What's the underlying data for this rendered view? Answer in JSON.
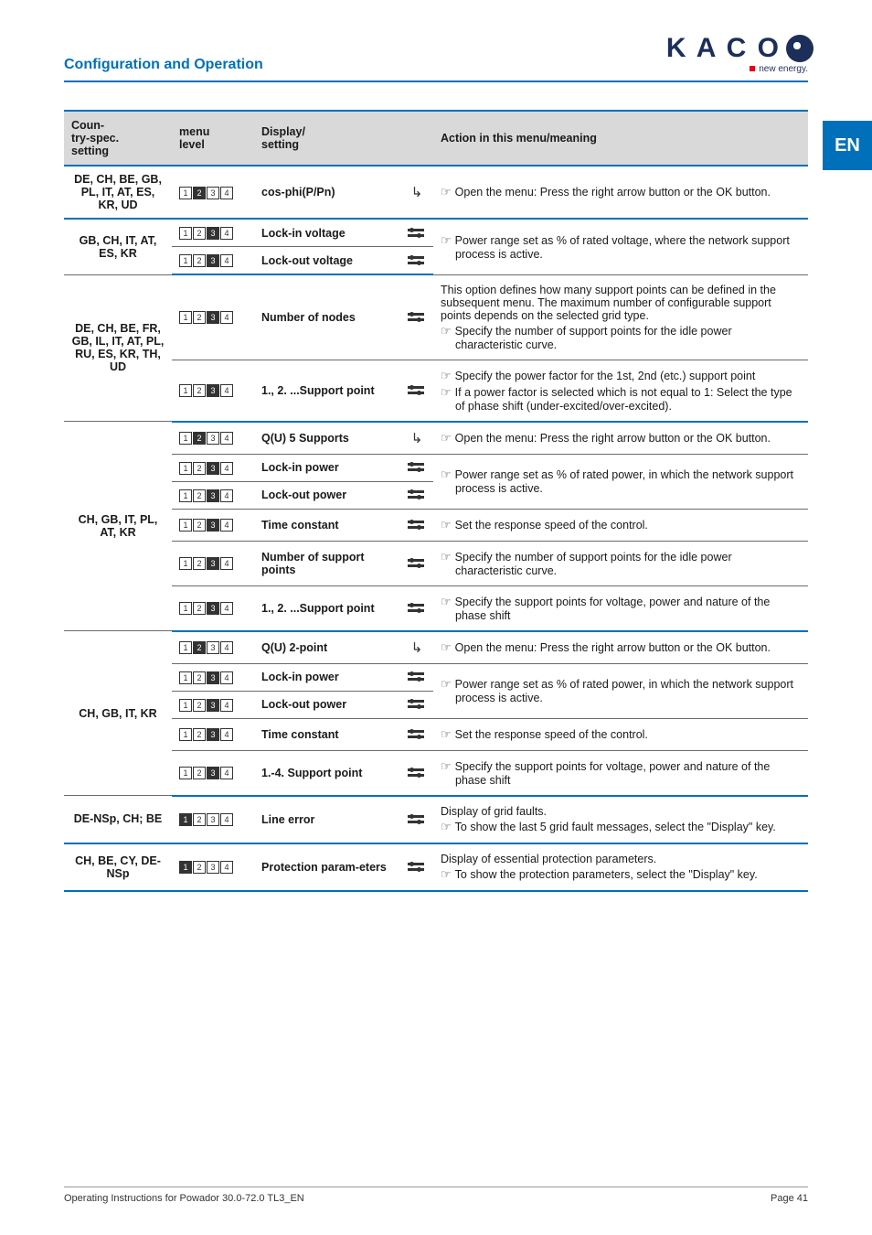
{
  "meta": {
    "section_title": "Configuration and Operation",
    "logo_text": "K A C O",
    "logo_sub": "new energy.",
    "lang_tab": "EN",
    "footer_left": "Operating Instructions for Powador 30.0-72.0 TL3_EN",
    "footer_right": "Page 41"
  },
  "colors": {
    "brand_blue": "#0070ba",
    "header_gray": "#d9d9d9",
    "rule_gray": "#6b6b6b",
    "logo_navy": "#1c2f5a",
    "red": "#e30613"
  },
  "headers": {
    "c1": "Coun-\ntry-spec.\nsetting",
    "c2": "menu\nlevel",
    "c3": "Display/\nsetting",
    "c5": "Action in this menu/meaning"
  },
  "icons": {
    "arrow": "arrow",
    "slider": "slider"
  },
  "groups": [
    {
      "country": "DE, CH, BE, GB, PL, IT, AT, ES, KR, UD",
      "rows": [
        {
          "level": [
            0,
            1,
            0,
            0
          ],
          "display": "cos-phi(P/Pn)",
          "icon": "arrow",
          "action": "☞  Open the menu: Press the right arrow button or the OK button."
        }
      ]
    },
    {
      "country": "GB, CH, IT, AT, ES,  KR",
      "rows": [
        {
          "level": [
            0,
            0,
            1,
            0
          ],
          "display": "Lock-in voltage",
          "icon": "slider",
          "action_shared_top": true,
          "action": "☞  Power range set as % of rated voltage, where the network support process is active."
        },
        {
          "level": [
            0,
            0,
            1,
            0
          ],
          "display": "Lock-out voltage",
          "icon": "slider",
          "action_merge_up": true
        }
      ]
    },
    {
      "country": "DE, CH, BE, FR, GB, IL, IT, AT, PL, RU, ES, KR, TH, UD",
      "rows": [
        {
          "level": [
            0,
            0,
            1,
            0
          ],
          "display": "Number of nodes",
          "icon": "slider",
          "action": "This option defines how many support points can be defined in the subsequent menu. The maximum number of configurable support points depends on the selected grid type.\n☞  Specify the number of support points for the idle power characteristic curve."
        },
        {
          "level": [
            0,
            0,
            1,
            0
          ],
          "display": "1., 2. ...Support point",
          "icon": "slider",
          "action": "☞  Specify the power factor for the 1st, 2nd (etc.) support point\n☞  If a power factor is selected which is not equal to 1: Select the type of phase shift (under-excited/over-excited)."
        }
      ]
    },
    {
      "country": "CH, GB, IT, PL, AT, KR",
      "rows": [
        {
          "level": [
            0,
            1,
            0,
            0
          ],
          "display": "Q(U) 5 Supports",
          "icon": "arrow",
          "action": "☞  Open the menu: Press the right arrow button or the OK button."
        },
        {
          "level": [
            0,
            0,
            1,
            0
          ],
          "display": "Lock-in power",
          "icon": "slider",
          "action_shared_top": true,
          "action": "☞  Power range set as % of rated power, in which the network support process is active."
        },
        {
          "level": [
            0,
            0,
            1,
            0
          ],
          "display": "Lock-out power",
          "icon": "slider",
          "action_merge_up": true
        },
        {
          "level": [
            0,
            0,
            1,
            0
          ],
          "display": "Time constant",
          "icon": "slider",
          "action": "☞  Set the response speed of the control."
        },
        {
          "level": [
            0,
            0,
            1,
            0
          ],
          "display": "Number of support points",
          "icon": "slider",
          "action": "☞  Specify the number of support points for the idle power characteristic curve."
        },
        {
          "level": [
            0,
            0,
            1,
            0
          ],
          "display": "1., 2. ...Support point",
          "icon": "slider",
          "action": "☞  Specify the support points for voltage, power and nature of the phase shift"
        }
      ]
    },
    {
      "country": "CH, GB, IT, KR",
      "rows": [
        {
          "level": [
            0,
            1,
            0,
            0
          ],
          "display": "Q(U) 2-point",
          "icon": "arrow",
          "action": "☞  Open the menu: Press the right arrow button or the OK button."
        },
        {
          "level": [
            0,
            0,
            1,
            0
          ],
          "display": "Lock-in power",
          "icon": "slider",
          "action_shared_top": true,
          "action": "☞  Power range set as % of rated power, in which the network support process is active."
        },
        {
          "level": [
            0,
            0,
            1,
            0
          ],
          "display": "Lock-out power",
          "icon": "slider",
          "action_merge_up": true
        },
        {
          "level": [
            0,
            0,
            1,
            0
          ],
          "display": "Time constant",
          "icon": "slider",
          "action": "☞  Set the response speed of the control."
        },
        {
          "level": [
            0,
            0,
            1,
            0
          ],
          "display": "1.-4. Support point",
          "icon": "slider",
          "action": "☞  Specify the support points for voltage, power and nature of the phase shift"
        }
      ]
    },
    {
      "country": "DE-NSp,  CH; BE",
      "rows": [
        {
          "level": [
            1,
            0,
            0,
            0
          ],
          "display": "Line error",
          "icon": "slider",
          "action": "Display of grid faults.\n☞  To show the last 5 grid fault messages, select the \"Display\" key."
        }
      ]
    },
    {
      "country": "CH, BE, CY, DE-NSp",
      "rows": [
        {
          "level": [
            1,
            0,
            0,
            0
          ],
          "display": "Protection param-eters",
          "icon": "slider",
          "action": "Display of essential protection parameters.\n☞  To show the protection parameters, select the \"Display\" key."
        }
      ]
    }
  ]
}
